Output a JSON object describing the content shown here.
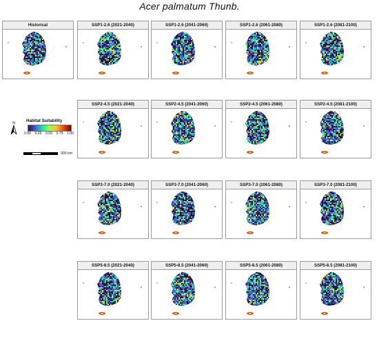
{
  "title": "Acer palmatum Thunb.",
  "legend": {
    "title": "Habitat Suitability",
    "ticks": [
      "0.00",
      "0.25",
      "0.50",
      "0.75",
      "1.00"
    ],
    "colors": [
      "#30123b",
      "#4662d7",
      "#1ae4b6",
      "#a2fc3c",
      "#fabb39",
      "#e4460a",
      "#7a0403"
    ],
    "north_icon": "north-arrow-icon",
    "scale_label": "300 km"
  },
  "panels": [
    {
      "label": "Historical",
      "kind": "historical"
    },
    {
      "label": "SSP1-2.6 (2021-2040)",
      "kind": "ssp126"
    },
    {
      "label": "SSP1-2.6 (2041-2060)",
      "kind": "ssp126"
    },
    {
      "label": "SSP1-2.6 (2061-2080)",
      "kind": "ssp126"
    },
    {
      "label": "SSP1-2.6 (2081-2100)",
      "kind": "ssp126"
    },
    {
      "label": "SSP2-4.5 (2021-2040)",
      "kind": "ssp245"
    },
    {
      "label": "SSP2-4.5 (2041-2060)",
      "kind": "ssp245"
    },
    {
      "label": "SSP2-4.5 (2061-2080)",
      "kind": "ssp245"
    },
    {
      "label": "SSP2-4.5 (2081-2100)",
      "kind": "ssp245"
    },
    {
      "label": "SSP3-7.0 (2021-2040)",
      "kind": "ssp370"
    },
    {
      "label": "SSP3-7.0 (2041-2060)",
      "kind": "ssp370"
    },
    {
      "label": "SSP3-7.0 (2061-2080)",
      "kind": "ssp370"
    },
    {
      "label": "SSP3-7.0 (2081-2100)",
      "kind": "ssp370"
    },
    {
      "label": "SSP5-8.5 (2021-2040)",
      "kind": "ssp585"
    },
    {
      "label": "SSP5-8.5 (2041-2060)",
      "kind": "ssp585"
    },
    {
      "label": "SSP5-8.5 (2061-2080)",
      "kind": "ssp585"
    },
    {
      "label": "SSP5-8.5 (2081-2100)",
      "kind": "ssp585"
    }
  ]
}
